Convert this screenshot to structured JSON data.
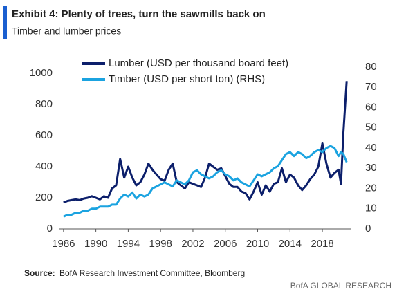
{
  "chart_data": {
    "type": "line",
    "title": "Exhibit 4: Plenty of trees, turn the sawmills back on",
    "subtitle": "Timber and lumber prices",
    "source_label": "Source:",
    "source": "BofA Research Investment Committee, Bloomberg",
    "footer": "BofA GLOBAL RESEARCH",
    "x": [
      1986,
      1986.5,
      1987,
      1987.5,
      1988,
      1988.5,
      1989,
      1989.5,
      1990,
      1990.5,
      1991,
      1991.5,
      1992,
      1992.5,
      1993,
      1993.5,
      1994,
      1994.5,
      1995,
      1995.5,
      1996,
      1996.5,
      1997,
      1997.5,
      1998,
      1998.5,
      1999,
      1999.5,
      2000,
      2000.5,
      2001,
      2001.5,
      2002,
      2002.5,
      2003,
      2003.5,
      2004,
      2004.5,
      2005,
      2005.5,
      2006,
      2006.5,
      2007,
      2007.5,
      2008,
      2008.5,
      2009,
      2009.5,
      2010,
      2010.5,
      2011,
      2011.5,
      2012,
      2012.5,
      2013,
      2013.5,
      2014,
      2014.5,
      2015,
      2015.5,
      2016,
      2016.5,
      2017,
      2017.5,
      2018,
      2018.5,
      2019,
      2019.5,
      2020,
      2020.3,
      2020.6,
      2021
    ],
    "series": [
      {
        "name": "Lumber (USD per thousand board feet)",
        "color": "#0c1f6b",
        "values": [
          170,
          180,
          185,
          190,
          185,
          195,
          200,
          210,
          200,
          190,
          210,
          200,
          260,
          280,
          450,
          330,
          400,
          330,
          280,
          300,
          350,
          420,
          380,
          350,
          320,
          310,
          380,
          420,
          300,
          280,
          260,
          300,
          290,
          280,
          270,
          330,
          420,
          400,
          380,
          390,
          340,
          290,
          270,
          270,
          240,
          230,
          190,
          240,
          300,
          220,
          280,
          240,
          290,
          300,
          390,
          300,
          350,
          330,
          280,
          250,
          280,
          320,
          350,
          400,
          550,
          420,
          330,
          360,
          380,
          290,
          620,
          950
        ]
      },
      {
        "name": "Timber (USD per short ton) (RHS)",
        "color": "#1ba3e0",
        "axis": "y2",
        "values": [
          6,
          7,
          7,
          8,
          8,
          9,
          9,
          10,
          10,
          11,
          11,
          11,
          12,
          12,
          15,
          17,
          16,
          18,
          15,
          17,
          16,
          17,
          20,
          21,
          22,
          23,
          22,
          21,
          24,
          23,
          22,
          24,
          28,
          29,
          27,
          26,
          25,
          26,
          28,
          29,
          27,
          26,
          24,
          25,
          23,
          22,
          21,
          24,
          27,
          26,
          27,
          28,
          30,
          31,
          34,
          37,
          38,
          36,
          38,
          37,
          35,
          36,
          38,
          39,
          38,
          40,
          41,
          40,
          36,
          38,
          37,
          33
        ]
      }
    ],
    "xlim": [
      1985.5,
      2021.5
    ],
    "xticks": [
      1986,
      1990,
      1994,
      1998,
      2002,
      2006,
      2010,
      2014,
      2018
    ],
    "ylim": [
      0,
      1040
    ],
    "yticks": [
      0,
      200,
      400,
      600,
      800,
      1000
    ],
    "y2lim": [
      0,
      80
    ],
    "y2ticks": [
      0,
      10,
      20,
      30,
      40,
      50,
      60,
      70,
      80
    ],
    "grid": false
  }
}
